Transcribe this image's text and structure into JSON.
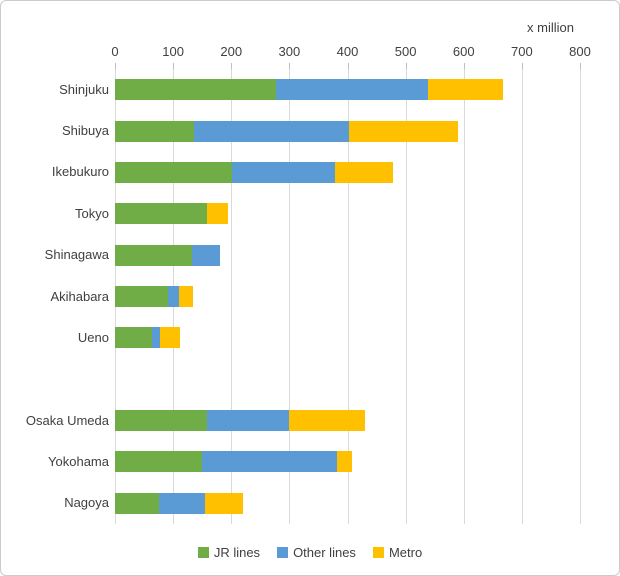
{
  "chart_data": {
    "type": "bar",
    "orientation": "horizontal-stacked",
    "unit_label": "x million",
    "xlim": [
      0,
      800
    ],
    "x_ticks": [
      0,
      100,
      200,
      300,
      400,
      500,
      600,
      700,
      800
    ],
    "grid": true,
    "legend_position": "bottom",
    "categories": [
      "Shinjuku",
      "Shibuya",
      "Ikebukuro",
      "Tokyo",
      "Shinagawa",
      "Akihabara",
      "Ueno",
      "",
      "Osaka Umeda",
      "Yokohama",
      "Nagoya"
    ],
    "series": [
      {
        "name": "JR lines",
        "color": "#70AD47",
        "values": [
          277,
          136,
          202,
          158,
          132,
          91,
          64,
          0,
          158,
          150,
          75
        ]
      },
      {
        "name": "Other lines",
        "color": "#5B9BD5",
        "values": [
          261,
          266,
          177,
          0,
          49,
          19,
          13,
          0,
          142,
          232,
          80
        ]
      },
      {
        "name": "Metro",
        "color": "#FFC000",
        "values": [
          129,
          188,
          99,
          36,
          0,
          24,
          34,
          0,
          130,
          26,
          66
        ]
      }
    ]
  }
}
